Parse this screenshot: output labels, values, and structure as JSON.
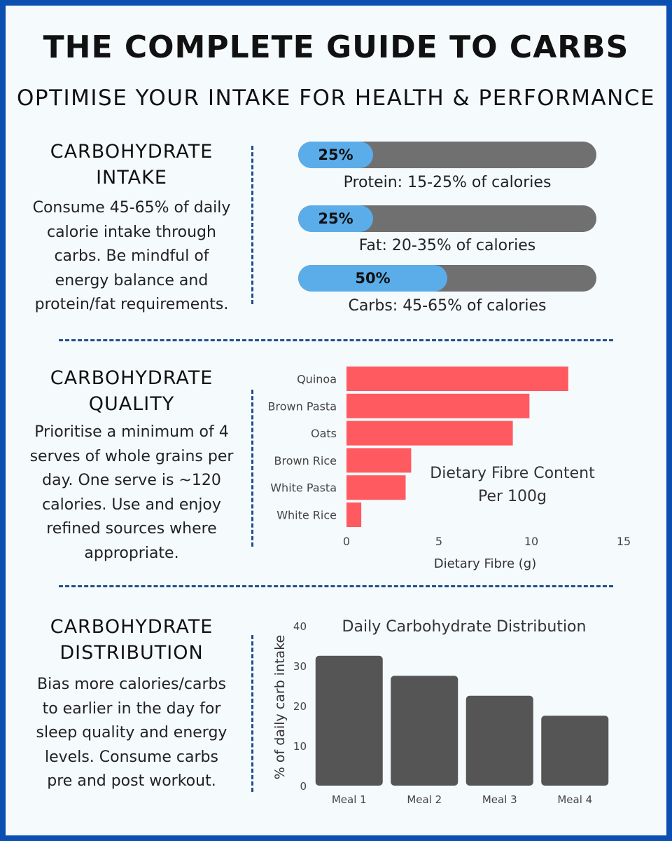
{
  "title": "THE COMPLETE GUIDE TO CARBS",
  "subtitle": "OPTIMISE YOUR INTAKE FOR HEALTH & PERFORMANCE",
  "colors": {
    "frame": "#0b4fb0",
    "background": "#f5fafd",
    "macro_fill": "#5aade9",
    "macro_track": "#707070",
    "fibre_bar": "#ff5a5f",
    "distribution_bar": "#555555",
    "divider": "#1f4e8c"
  },
  "sections": {
    "intake": {
      "heading_line1": "CARBOHYDRATE",
      "heading_line2": "INTAKE",
      "body_lines": [
        "Consume 45-65% of daily",
        "calorie intake through",
        "carbs. Be mindful of",
        "energy balance and",
        "protein/fat requirements."
      ]
    },
    "quality": {
      "heading_line1": "CARBOHYDRATE",
      "heading_line2": "QUALITY",
      "body_lines": [
        "Prioritise a minimum of 4",
        "serves of whole grains per",
        "day. One serve is ~120",
        "calories. Use and enjoy",
        "refined sources where",
        "appropriate."
      ]
    },
    "distribution": {
      "heading_line1": "CARBOHYDRATE",
      "heading_line2": "DISTRIBUTION",
      "body_lines": [
        "Bias more calories/carbs",
        "to earlier in the day for",
        "sleep quality and energy",
        "levels. Consume carbs",
        "pre and post workout."
      ]
    }
  },
  "chart_data": [
    {
      "type": "bar",
      "orientation": "horizontal",
      "categories": [
        "Protein",
        "Fat",
        "Carbs"
      ],
      "values": [
        25,
        25,
        50
      ],
      "value_labels": [
        "25%",
        "25%",
        "50%"
      ],
      "captions": [
        "Protein: 15-25% of calories",
        "Fat: 20-35% of calories",
        "Carbs: 45-65% of calories"
      ],
      "xlim": [
        0,
        100
      ]
    },
    {
      "type": "bar",
      "orientation": "horizontal",
      "categories": [
        "Quinoa",
        "Brown Pasta",
        "Oats",
        "Brown Rice",
        "White Pasta",
        "White Rice"
      ],
      "values": [
        12,
        9.9,
        9,
        3.5,
        3.2,
        0.8
      ],
      "title_line1": "Dietary Fibre Content",
      "title_line2": "Per 100g",
      "xlabel": "Dietary Fibre (g)",
      "xlim": [
        0,
        15
      ],
      "xticks": [
        0,
        5,
        10,
        15
      ],
      "grid": false
    },
    {
      "type": "bar",
      "categories": [
        "Meal 1",
        "Meal 2",
        "Meal 3",
        "Meal 4"
      ],
      "values": [
        32.5,
        27.5,
        22.5,
        17.5
      ],
      "title": "Daily Carbohydrate Distribution",
      "ylabel": "% of daily carb intake",
      "ylim": [
        0,
        40
      ],
      "yticks": [
        0,
        10,
        20,
        30,
        40
      ],
      "grid": false
    }
  ]
}
